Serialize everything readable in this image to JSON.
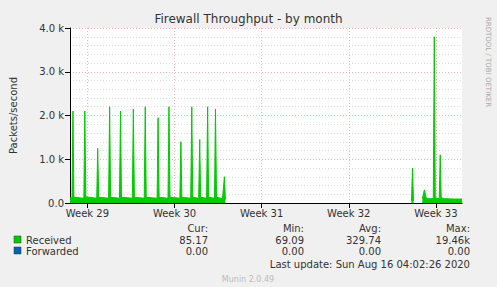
{
  "chart_data": {
    "type": "area",
    "title": "Firewall Throughput - by month",
    "y_label": "Packets/second",
    "x": [
      28.8,
      28.823,
      28.834,
      28.845,
      28.959,
      28.97,
      28.982,
      29.107,
      29.118,
      29.13,
      29.243,
      29.255,
      29.266,
      29.368,
      29.38,
      29.391,
      29.516,
      29.527,
      29.539,
      29.652,
      29.664,
      29.675,
      29.8,
      29.811,
      29.823,
      29.925,
      29.936,
      29.948,
      30.061,
      30.073,
      30.084,
      30.186,
      30.198,
      30.209,
      30.277,
      30.289,
      30.3,
      30.368,
      30.38,
      30.391,
      30.459,
      30.47,
      30.482,
      30.55,
      30.573,
      30.584,
      30.6,
      32.72,
      32.732,
      32.743,
      32.76,
      32.845,
      32.868,
      32.891,
      32.97,
      32.982,
      32.993,
      33.039,
      33.05,
      33.061,
      33.095,
      33.209,
      33.3
    ],
    "series": [
      {
        "name": "Received",
        "color": "#00cc00",
        "type": "area",
        "values": [
          120,
          120,
          2100,
          130,
          110,
          2100,
          140,
          110,
          1250,
          130,
          110,
          2200,
          130,
          110,
          2100,
          130,
          110,
          2150,
          130,
          110,
          2200,
          130,
          110,
          1950,
          130,
          110,
          2200,
          130,
          110,
          1400,
          130,
          110,
          2200,
          130,
          110,
          1450,
          130,
          110,
          2200,
          130,
          110,
          2150,
          130,
          100,
          600,
          80,
          null,
          50,
          800,
          50,
          null,
          100,
          300,
          100,
          100,
          3800,
          120,
          100,
          1100,
          120,
          100,
          90,
          90
        ],
        "stats": [
          "85.17",
          "69.09",
          "329.74",
          "19.46k"
        ]
      },
      {
        "name": "Forwarded",
        "color": "#0066b3",
        "type": "line",
        "values": [
          0,
          0,
          0,
          0,
          0,
          0,
          0,
          0,
          0,
          0,
          0,
          0,
          0,
          0,
          0,
          0,
          0,
          0,
          0,
          0,
          0,
          0,
          0,
          0,
          0,
          0,
          0,
          0,
          0,
          0,
          0,
          0,
          0,
          0,
          0,
          0,
          0,
          0,
          0,
          0,
          0,
          0,
          0,
          0,
          0,
          0,
          null,
          0,
          0,
          0,
          null,
          0,
          0,
          0,
          0,
          0,
          0,
          0,
          0,
          0,
          0,
          0,
          0
        ],
        "stats": [
          "0.00",
          "0.00",
          "0.00",
          "0.00"
        ]
      }
    ],
    "stat_labels": [
      "Cur:",
      "Min:",
      "Avg:",
      "Max:"
    ],
    "xlim": [
      28.8,
      33.3
    ],
    "xticks": [
      {
        "value": 29,
        "label": "Week 29"
      },
      {
        "value": 30,
        "label": "Week 30"
      },
      {
        "value": 31,
        "label": "Week 31"
      },
      {
        "value": 32,
        "label": "Week 32"
      },
      {
        "value": 33,
        "label": "Week 33"
      }
    ],
    "ylim": [
      0,
      4000
    ],
    "yticks": [
      {
        "value": 0,
        "label": "0.0"
      },
      {
        "value": 1000,
        "label": "1.0 k"
      },
      {
        "value": 2000,
        "label": "2.0 k"
      },
      {
        "value": 3000,
        "label": "3.0 k"
      },
      {
        "value": 4000,
        "label": "4.0 k"
      }
    ],
    "grid": true,
    "footer": "Last update: Sun Aug 16 04:02:26 2020",
    "credit": "Munin 2.0.49",
    "watermark": "RRDTOOL / TOBI OETIKER"
  }
}
